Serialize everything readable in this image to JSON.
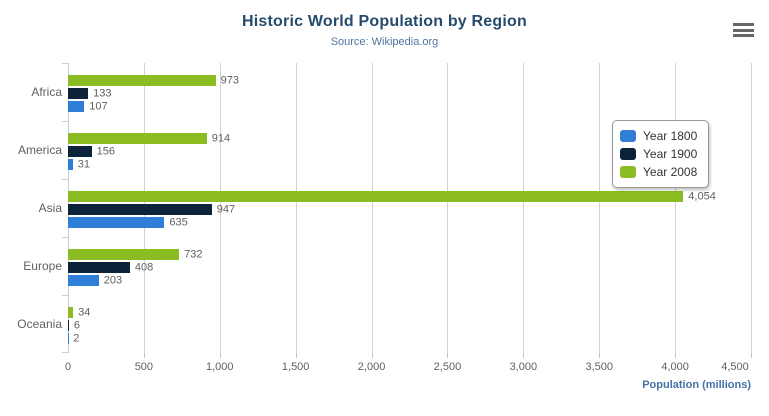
{
  "header": {
    "title": "Historic World Population by Region",
    "subtitle": "Source: Wikipedia.org",
    "menu_icon": "hamburger-icon"
  },
  "colors": {
    "series_1800": "#2f7ed8",
    "series_1900": "#0d233a",
    "series_2008": "#8bbc21",
    "title_text": "#274b6d",
    "subtitle_text": "#4d759e",
    "axis_title_text": "#4572a7",
    "label_text": "#606060",
    "gridline": "#d3d3d3",
    "category_axis_line": "#c0d0e0",
    "legend_border": "#999999",
    "legend_text": "#333333",
    "menu_icon": "#666666"
  },
  "chart_data": {
    "type": "bar",
    "title": "Historic World Population by Region",
    "subtitle": "Source: Wikipedia.org",
    "categories": [
      "Africa",
      "America",
      "Asia",
      "Europe",
      "Oceania"
    ],
    "series": [
      {
        "name": "Year 1800",
        "color": "#2f7ed8",
        "values": [
          107,
          31,
          635,
          203,
          2
        ]
      },
      {
        "name": "Year 1900",
        "color": "#0d233a",
        "values": [
          133,
          156,
          947,
          408,
          6
        ]
      },
      {
        "name": "Year 2008",
        "color": "#8bbc21",
        "values": [
          973,
          914,
          4054,
          732,
          34
        ]
      }
    ],
    "data_labels": {
      "Africa": {
        "Year 1800": "107",
        "Year 1900": "133",
        "Year 2008": "973"
      },
      "America": {
        "Year 1800": "31",
        "Year 1900": "156",
        "Year 2008": "914"
      },
      "Asia": {
        "Year 1800": "635",
        "Year 1900": "947",
        "Year 2008": "4,054"
      },
      "Europe": {
        "Year 1800": "203",
        "Year 1900": "408",
        "Year 2008": "732"
      },
      "Oceania": {
        "Year 1800": "2",
        "Year 1900": "6",
        "Year 2008": "34"
      }
    },
    "xlabel": "Population (millions)",
    "ylabel": "",
    "xlim": [
      0,
      4500
    ],
    "x_ticks": [
      0,
      500,
      1000,
      1500,
      2000,
      2500,
      3000,
      3500,
      4000,
      4500
    ],
    "x_tick_labels": [
      "0",
      "500",
      "1,000",
      "1,500",
      "2,000",
      "2,500",
      "3,000",
      "3,500",
      "4,000",
      "4,500"
    ],
    "grid": true,
    "legend_position": "right-floating",
    "bar_display_order_top_to_bottom": [
      "Year 2008",
      "Year 1900",
      "Year 1800"
    ]
  }
}
